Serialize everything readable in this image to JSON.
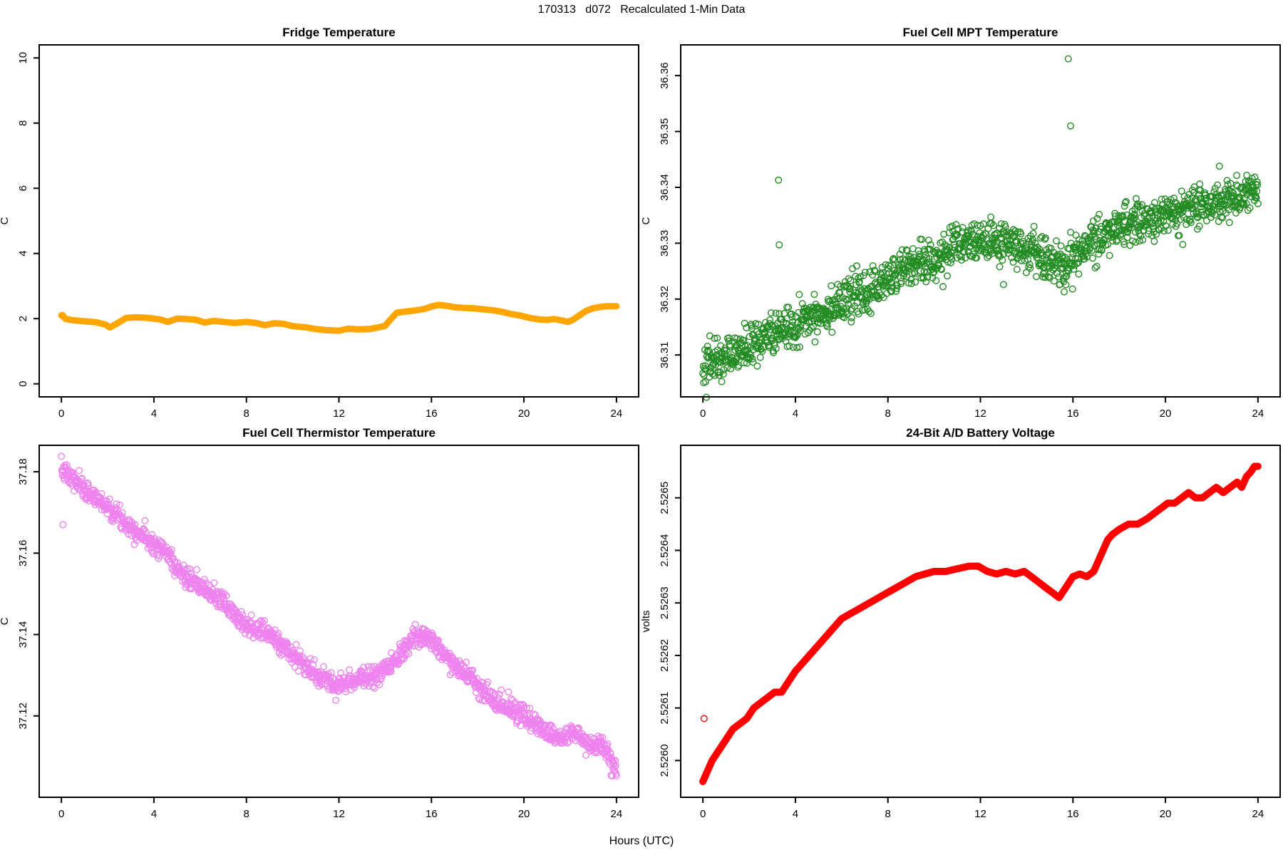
{
  "header": {
    "title": "170313   d072   Recalculated 1-Min Data"
  },
  "footer": {
    "xlabel": "Hours (UTC)"
  },
  "chart_data": [
    {
      "type": "scatter",
      "render": "band",
      "title": "Fridge Temperature",
      "ylabel": "C",
      "color": "#FFA500",
      "marker": "open-circle",
      "line_width": 9,
      "xlim": [
        -0.96,
        24.96
      ],
      "ylim": [
        -0.4,
        10.4
      ],
      "xticks": [
        0,
        4,
        8,
        12,
        16,
        20,
        24
      ],
      "xtick_labels": [
        "0",
        "4",
        "8",
        "12",
        "16",
        "20",
        "24"
      ],
      "yticks": [
        0,
        2,
        4,
        6,
        8,
        10
      ],
      "ytick_labels": [
        "0",
        "2",
        "4",
        "6",
        "8",
        "10"
      ],
      "n_points": 1441,
      "noise_sd": 0,
      "seed": 11,
      "trend": [
        [
          0,
          2.1
        ],
        [
          0.2,
          1.99
        ],
        [
          0.5,
          1.95
        ],
        [
          1,
          1.92
        ],
        [
          1.5,
          1.89
        ],
        [
          1.9,
          1.82
        ],
        [
          2.1,
          1.73
        ],
        [
          2.4,
          1.85
        ],
        [
          2.8,
          2.02
        ],
        [
          3.2,
          2.04
        ],
        [
          3.6,
          2.03
        ],
        [
          4,
          2.0
        ],
        [
          4.3,
          1.97
        ],
        [
          4.6,
          1.9
        ],
        [
          5,
          2.0
        ],
        [
          5.4,
          1.99
        ],
        [
          5.8,
          1.97
        ],
        [
          6.2,
          1.88
        ],
        [
          6.6,
          1.93
        ],
        [
          7,
          1.9
        ],
        [
          7.5,
          1.87
        ],
        [
          8,
          1.9
        ],
        [
          8.4,
          1.87
        ],
        [
          8.8,
          1.8
        ],
        [
          9.2,
          1.86
        ],
        [
          9.6,
          1.84
        ],
        [
          10,
          1.77
        ],
        [
          10.6,
          1.73
        ],
        [
          11,
          1.68
        ],
        [
          11.4,
          1.65
        ],
        [
          12,
          1.63
        ],
        [
          12.4,
          1.69
        ],
        [
          12.8,
          1.67
        ],
        [
          13.3,
          1.68
        ],
        [
          13.7,
          1.73
        ],
        [
          14,
          1.78
        ],
        [
          14.2,
          1.95
        ],
        [
          14.5,
          2.18
        ],
        [
          14.9,
          2.22
        ],
        [
          15.3,
          2.25
        ],
        [
          15.7,
          2.3
        ],
        [
          16,
          2.37
        ],
        [
          16.3,
          2.42
        ],
        [
          16.7,
          2.39
        ],
        [
          17,
          2.35
        ],
        [
          17.4,
          2.33
        ],
        [
          17.8,
          2.32
        ],
        [
          18.2,
          2.29
        ],
        [
          18.6,
          2.26
        ],
        [
          19,
          2.22
        ],
        [
          19.4,
          2.15
        ],
        [
          19.8,
          2.1
        ],
        [
          20.2,
          2.03
        ],
        [
          20.6,
          1.98
        ],
        [
          21,
          1.96
        ],
        [
          21.3,
          1.99
        ],
        [
          21.6,
          1.95
        ],
        [
          21.9,
          1.9
        ],
        [
          22.1,
          1.96
        ],
        [
          22.4,
          2.1
        ],
        [
          22.7,
          2.24
        ],
        [
          23,
          2.32
        ],
        [
          23.4,
          2.37
        ],
        [
          23.7,
          2.38
        ],
        [
          24,
          2.38
        ]
      ],
      "outliers": [
        [
          0.05,
          2.1
        ]
      ]
    },
    {
      "type": "scatter",
      "render": "scatter",
      "title": "Fuel Cell MPT Temperature",
      "ylabel": "C",
      "color": "#228B22",
      "marker": "open-circle",
      "line_width": 0,
      "xlim": [
        -0.96,
        24.96
      ],
      "ylim": [
        36.3025,
        36.3655
      ],
      "xticks": [
        0,
        4,
        8,
        12,
        16,
        20,
        24
      ],
      "xtick_labels": [
        "0",
        "4",
        "8",
        "12",
        "16",
        "20",
        "24"
      ],
      "yticks": [
        36.31,
        36.32,
        36.33,
        36.34,
        36.35,
        36.36
      ],
      "ytick_labels": [
        "36.31",
        "36.32",
        "36.33",
        "36.34",
        "36.35",
        "36.36"
      ],
      "n_points": 1441,
      "noise_sd": 0.0019,
      "seed": 42,
      "trend": [
        [
          0,
          36.3085
        ],
        [
          0.5,
          36.309
        ],
        [
          1,
          36.3095
        ],
        [
          1.5,
          36.3105
        ],
        [
          2,
          36.3115
        ],
        [
          2.5,
          36.3125
        ],
        [
          3,
          36.3135
        ],
        [
          3.5,
          36.3145
        ],
        [
          4,
          36.3155
        ],
        [
          4.5,
          36.3165
        ],
        [
          5,
          36.3175
        ],
        [
          5.5,
          36.3185
        ],
        [
          6,
          36.3195
        ],
        [
          6.5,
          36.3202
        ],
        [
          7,
          36.321
        ],
        [
          7.5,
          36.322
        ],
        [
          8,
          36.3235
        ],
        [
          8.5,
          36.325
        ],
        [
          9,
          36.326
        ],
        [
          9.5,
          36.3265
        ],
        [
          10,
          36.327
        ],
        [
          10.5,
          36.328
        ],
        [
          11,
          36.3295
        ],
        [
          11.5,
          36.33
        ],
        [
          12,
          36.33
        ],
        [
          12.5,
          36.3295
        ],
        [
          13,
          36.33
        ],
        [
          13.5,
          36.3295
        ],
        [
          14,
          36.329
        ],
        [
          14.5,
          36.328
        ],
        [
          15,
          36.3265
        ],
        [
          15.5,
          36.326
        ],
        [
          16,
          36.327
        ],
        [
          16.5,
          36.329
        ],
        [
          17,
          36.3305
        ],
        [
          17.5,
          36.332
        ],
        [
          18,
          36.333
        ],
        [
          18.5,
          36.3335
        ],
        [
          19,
          36.334
        ],
        [
          19.5,
          36.3345
        ],
        [
          20,
          36.335
        ],
        [
          20.5,
          36.3355
        ],
        [
          21,
          36.336
        ],
        [
          21.5,
          36.3365
        ],
        [
          22,
          36.337
        ],
        [
          22.5,
          36.3375
        ],
        [
          23,
          36.3385
        ],
        [
          23.5,
          36.339
        ],
        [
          24,
          36.34
        ]
      ],
      "outliers": [
        [
          3.27,
          36.3413
        ],
        [
          3.3,
          36.3297
        ],
        [
          15.8,
          36.363
        ],
        [
          15.9,
          36.351
        ],
        [
          15.62,
          36.3213
        ],
        [
          13.0,
          36.3226
        ]
      ]
    },
    {
      "type": "scatter",
      "render": "scatter",
      "title": "Fuel Cell Thermistor Temperature",
      "ylabel": "C",
      "color": "#EE82EE",
      "marker": "open-circle",
      "line_width": 0,
      "xlim": [
        -0.96,
        24.96
      ],
      "ylim": [
        37.1,
        37.1865
      ],
      "xticks": [
        0,
        4,
        8,
        12,
        16,
        20,
        24
      ],
      "xtick_labels": [
        "0",
        "4",
        "8",
        "12",
        "16",
        "20",
        "24"
      ],
      "yticks": [
        37.12,
        37.14,
        37.16,
        37.18
      ],
      "ytick_labels": [
        "37.12",
        "37.14",
        "37.16",
        "37.18"
      ],
      "n_points": 1441,
      "noise_sd": 0.0012,
      "seed": 7,
      "trend": [
        [
          0,
          37.1805
        ],
        [
          0.5,
          37.178
        ],
        [
          1,
          37.1755
        ],
        [
          1.5,
          37.1735
        ],
        [
          2,
          37.1715
        ],
        [
          2.5,
          37.169
        ],
        [
          3,
          37.1665
        ],
        [
          3.5,
          37.1645
        ],
        [
          4,
          37.1625
        ],
        [
          4.3,
          37.1615
        ],
        [
          4.7,
          37.159
        ],
        [
          5,
          37.156
        ],
        [
          5.5,
          37.1535
        ],
        [
          6,
          37.1515
        ],
        [
          6.5,
          37.15
        ],
        [
          7,
          37.148
        ],
        [
          7.5,
          37.145
        ],
        [
          8,
          37.1425
        ],
        [
          8.5,
          37.141
        ],
        [
          9,
          37.14
        ],
        [
          9.5,
          37.1375
        ],
        [
          10,
          37.135
        ],
        [
          10.5,
          37.1325
        ],
        [
          11,
          37.13
        ],
        [
          11.5,
          37.1285
        ],
        [
          12,
          37.128
        ],
        [
          12.4,
          37.1285
        ],
        [
          12.8,
          37.129
        ],
        [
          13.2,
          37.1295
        ],
        [
          13.6,
          37.13
        ],
        [
          14,
          37.131
        ],
        [
          14.4,
          37.133
        ],
        [
          14.8,
          37.136
        ],
        [
          15.2,
          37.1385
        ],
        [
          15.6,
          37.14
        ],
        [
          16,
          37.1385
        ],
        [
          16.4,
          37.136
        ],
        [
          16.8,
          37.134
        ],
        [
          17.2,
          37.132
        ],
        [
          17.6,
          37.13
        ],
        [
          18,
          37.127
        ],
        [
          18.4,
          37.125
        ],
        [
          18.8,
          37.1235
        ],
        [
          19.2,
          37.1225
        ],
        [
          19.6,
          37.1215
        ],
        [
          20,
          37.12
        ],
        [
          20.4,
          37.1185
        ],
        [
          20.8,
          37.117
        ],
        [
          21.2,
          37.1155
        ],
        [
          21.6,
          37.1145
        ],
        [
          22,
          37.1155
        ],
        [
          22.3,
          37.116
        ],
        [
          22.6,
          37.114
        ],
        [
          23,
          37.1125
        ],
        [
          23.3,
          37.1135
        ],
        [
          23.6,
          37.111
        ],
        [
          23.8,
          37.109
        ],
        [
          24,
          37.1065
        ]
      ],
      "outliers": [
        [
          0.07,
          37.167
        ],
        [
          16.9,
          37.1307
        ]
      ]
    },
    {
      "type": "scatter",
      "render": "band",
      "title": "24-Bit A/D Battery Voltage",
      "ylabel": "volts",
      "color": "#FF0000",
      "marker": "open-circle",
      "line_width": 10,
      "xlim": [
        -0.96,
        24.96
      ],
      "ylim": [
        2.52593,
        2.5266
      ],
      "xticks": [
        0,
        4,
        8,
        12,
        16,
        20,
        24
      ],
      "xtick_labels": [
        "0",
        "4",
        "8",
        "12",
        "16",
        "20",
        "24"
      ],
      "yticks": [
        2.526,
        2.5261,
        2.5262,
        2.5263,
        2.5264,
        2.5265
      ],
      "ytick_labels": [
        "2.5260",
        "2.5261",
        "2.5262",
        "2.5263",
        "2.5264",
        "2.5265"
      ],
      "n_points": 1441,
      "noise_sd": 0,
      "seed": 3,
      "trend": [
        [
          0,
          2.52596
        ],
        [
          0.2,
          2.52598
        ],
        [
          0.4,
          2.526
        ],
        [
          0.7,
          2.52602
        ],
        [
          1,
          2.52604
        ],
        [
          1.3,
          2.52606
        ],
        [
          1.6,
          2.52607
        ],
        [
          1.9,
          2.52608
        ],
        [
          2.2,
          2.5261
        ],
        [
          2.5,
          2.52611
        ],
        [
          2.8,
          2.52612
        ],
        [
          3.1,
          2.52613
        ],
        [
          3.4,
          2.52613
        ],
        [
          3.7,
          2.52615
        ],
        [
          4,
          2.52617
        ],
        [
          4.4,
          2.52619
        ],
        [
          4.8,
          2.52621
        ],
        [
          5.2,
          2.52623
        ],
        [
          5.6,
          2.52625
        ],
        [
          6,
          2.52627
        ],
        [
          6.4,
          2.52628
        ],
        [
          6.8,
          2.52629
        ],
        [
          7.2,
          2.5263
        ],
        [
          7.6,
          2.52631
        ],
        [
          8,
          2.52632
        ],
        [
          8.4,
          2.52633
        ],
        [
          8.8,
          2.52634
        ],
        [
          9.2,
          2.52635
        ],
        [
          9.6,
          2.526355
        ],
        [
          10,
          2.52636
        ],
        [
          10.5,
          2.52636
        ],
        [
          11,
          2.526365
        ],
        [
          11.5,
          2.52637
        ],
        [
          11.9,
          2.52637
        ],
        [
          12.3,
          2.52636
        ],
        [
          12.7,
          2.526355
        ],
        [
          13.1,
          2.52636
        ],
        [
          13.5,
          2.526355
        ],
        [
          13.9,
          2.52636
        ],
        [
          14.2,
          2.52635
        ],
        [
          14.5,
          2.52634
        ],
        [
          14.8,
          2.52633
        ],
        [
          15.1,
          2.52632
        ],
        [
          15.4,
          2.52631
        ],
        [
          15.7,
          2.52633
        ],
        [
          16,
          2.52635
        ],
        [
          16.3,
          2.526355
        ],
        [
          16.6,
          2.52635
        ],
        [
          16.9,
          2.52636
        ],
        [
          17.1,
          2.52638
        ],
        [
          17.3,
          2.5264
        ],
        [
          17.5,
          2.52642
        ],
        [
          17.7,
          2.52643
        ],
        [
          18,
          2.52644
        ],
        [
          18.4,
          2.52645
        ],
        [
          18.8,
          2.52645
        ],
        [
          19.2,
          2.52646
        ],
        [
          19.5,
          2.52647
        ],
        [
          19.8,
          2.52648
        ],
        [
          20.1,
          2.52649
        ],
        [
          20.4,
          2.52649
        ],
        [
          20.7,
          2.5265
        ],
        [
          21,
          2.52651
        ],
        [
          21.3,
          2.5265
        ],
        [
          21.6,
          2.5265
        ],
        [
          21.9,
          2.52651
        ],
        [
          22.2,
          2.52652
        ],
        [
          22.5,
          2.52651
        ],
        [
          22.8,
          2.52652
        ],
        [
          23.1,
          2.52653
        ],
        [
          23.3,
          2.52652
        ],
        [
          23.5,
          2.52654
        ],
        [
          23.7,
          2.52655
        ],
        [
          23.85,
          2.52656
        ],
        [
          24,
          2.52656
        ]
      ],
      "outliers": [
        [
          0.05,
          2.52608
        ]
      ]
    }
  ]
}
